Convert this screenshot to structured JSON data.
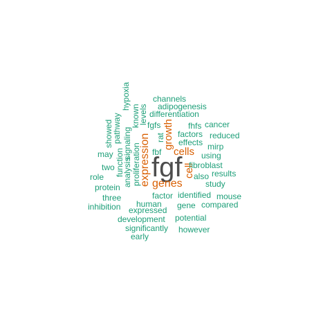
{
  "word_cloud": {
    "palette": {
      "top": "#4d4d4d",
      "high": "#d95f02",
      "normal": "#1b9e77"
    },
    "words": [
      {
        "text": "fgf",
        "tier": "top"
      },
      {
        "text": "expression",
        "tier": "high"
      },
      {
        "text": "genes",
        "tier": "high"
      },
      {
        "text": "cells",
        "tier": "high"
      },
      {
        "text": "growth",
        "tier": "high"
      },
      {
        "text": "cell",
        "tier": "high"
      },
      {
        "text": "hypoxia",
        "tier": "normal"
      },
      {
        "text": "channels",
        "tier": "normal"
      },
      {
        "text": "adipogenesis",
        "tier": "normal"
      },
      {
        "text": "known",
        "tier": "normal"
      },
      {
        "text": "differentiation",
        "tier": "normal"
      },
      {
        "text": "levels",
        "tier": "normal"
      },
      {
        "text": "showed",
        "tier": "normal"
      },
      {
        "text": "pathway",
        "tier": "normal"
      },
      {
        "text": "fgfs",
        "tier": "normal"
      },
      {
        "text": "fhfs",
        "tier": "normal"
      },
      {
        "text": "cancer",
        "tier": "normal"
      },
      {
        "text": "rat",
        "tier": "normal"
      },
      {
        "text": "factors",
        "tier": "normal"
      },
      {
        "text": "reduced",
        "tier": "normal"
      },
      {
        "text": "effects",
        "tier": "normal"
      },
      {
        "text": "mirp",
        "tier": "normal"
      },
      {
        "text": "may",
        "tier": "normal"
      },
      {
        "text": "signaling",
        "tier": "normal"
      },
      {
        "text": "fbf",
        "tier": "normal"
      },
      {
        "text": "using",
        "tier": "normal"
      },
      {
        "text": "function",
        "tier": "normal"
      },
      {
        "text": "two",
        "tier": "normal"
      },
      {
        "text": "analysis",
        "tier": "normal"
      },
      {
        "text": "proliferation",
        "tier": "normal"
      },
      {
        "text": "fibroblast",
        "tier": "normal"
      },
      {
        "text": "results",
        "tier": "normal"
      },
      {
        "text": "role",
        "tier": "normal"
      },
      {
        "text": "also",
        "tier": "normal"
      },
      {
        "text": "study",
        "tier": "normal"
      },
      {
        "text": "protein",
        "tier": "normal"
      },
      {
        "text": "factor",
        "tier": "normal"
      },
      {
        "text": "identified",
        "tier": "normal"
      },
      {
        "text": "mouse",
        "tier": "normal"
      },
      {
        "text": "three",
        "tier": "normal"
      },
      {
        "text": "human",
        "tier": "normal"
      },
      {
        "text": "gene",
        "tier": "normal"
      },
      {
        "text": "compared",
        "tier": "normal"
      },
      {
        "text": "inhibition",
        "tier": "normal"
      },
      {
        "text": "expressed",
        "tier": "normal"
      },
      {
        "text": "development",
        "tier": "normal"
      },
      {
        "text": "potential",
        "tier": "normal"
      },
      {
        "text": "significantly",
        "tier": "normal"
      },
      {
        "text": "however",
        "tier": "normal"
      },
      {
        "text": "early",
        "tier": "normal"
      }
    ]
  }
}
